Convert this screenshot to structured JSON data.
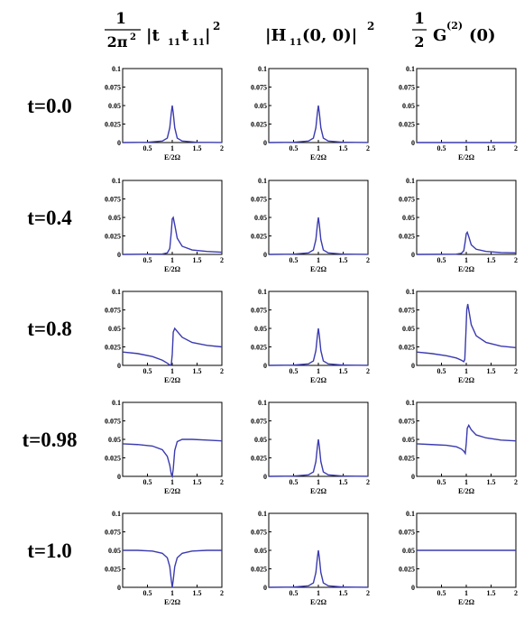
{
  "headers": [
    {
      "frac_num": "1",
      "frac_den": "2π",
      "den_exp": "2",
      "body": "|t",
      "sub1": "11",
      "mid": "t",
      "sub2": "11",
      "tail": "|",
      "exp": "2"
    },
    {
      "body": "|H",
      "sub": "11",
      "args": "(0, 0)|",
      "exp": "2"
    },
    {
      "frac_num": "1",
      "frac_den": "2",
      "body": "G",
      "sup": "(2)",
      "args": "(0)"
    }
  ],
  "chart_data": {
    "type": "line",
    "xlabel": "E/2Ω",
    "xlim": [
      0,
      2
    ],
    "ylim": [
      0,
      0.1
    ],
    "xticks": [
      "0.5",
      "1",
      "1.5",
      "2"
    ],
    "yticks": [
      "0",
      "0.025",
      "0.05",
      "0.075",
      "0.1"
    ],
    "series_color": "#3a3ab0",
    "rows": [
      {
        "label": "t=0.0",
        "panels": [
          {
            "x": [
              0,
              0.5,
              0.8,
              0.9,
              0.95,
              0.98,
              1.0,
              1.02,
              1.05,
              1.1,
              1.2,
              1.5,
              2.0
            ],
            "y": [
              0,
              0.0004,
              0.002,
              0.006,
              0.02,
              0.04,
              0.05,
              0.04,
              0.02,
              0.006,
              0.002,
              0.0004,
              0.0001
            ]
          },
          {
            "x": [
              0,
              0.5,
              0.8,
              0.9,
              0.95,
              0.98,
              1.0,
              1.02,
              1.05,
              1.1,
              1.2,
              1.5,
              2.0
            ],
            "y": [
              0,
              0.0004,
              0.002,
              0.006,
              0.02,
              0.04,
              0.05,
              0.04,
              0.02,
              0.006,
              0.002,
              0.0004,
              0.0001
            ]
          },
          {
            "x": [
              0,
              2
            ],
            "y": [
              0,
              0
            ]
          }
        ]
      },
      {
        "label": "t=0.4",
        "panels": [
          {
            "x": [
              0,
              0.8,
              0.9,
              0.95,
              0.98,
              1.0,
              1.02,
              1.05,
              1.1,
              1.2,
              1.4,
              1.7,
              2.0
            ],
            "y": [
              0,
              0.0005,
              0.002,
              0.008,
              0.03,
              0.048,
              0.05,
              0.04,
              0.022,
              0.011,
              0.006,
              0.004,
              0.003
            ]
          },
          {
            "x": [
              0,
              0.5,
              0.8,
              0.9,
              0.95,
              0.98,
              1.0,
              1.02,
              1.05,
              1.1,
              1.2,
              1.5,
              2.0
            ],
            "y": [
              0,
              0.0004,
              0.002,
              0.006,
              0.02,
              0.04,
              0.05,
              0.04,
              0.02,
              0.006,
              0.002,
              0.0004,
              0.0001
            ]
          },
          {
            "x": [
              0,
              0.8,
              0.9,
              0.95,
              0.98,
              1.0,
              1.02,
              1.05,
              1.1,
              1.2,
              1.4,
              1.7,
              2.0
            ],
            "y": [
              0,
              0.0003,
              0.0015,
              0.005,
              0.018,
              0.028,
              0.03,
              0.024,
              0.013,
              0.007,
              0.004,
              0.0025,
              0.002
            ]
          }
        ]
      },
      {
        "label": "t=0.8",
        "panels": [
          {
            "x": [
              0,
              0.3,
              0.6,
              0.8,
              0.9,
              0.95,
              0.98,
              1.0,
              1.02,
              1.05,
              1.1,
              1.2,
              1.4,
              1.7,
              2.0
            ],
            "y": [
              0.018,
              0.016,
              0.012,
              0.007,
              0.003,
              0.0005,
              0.001,
              0.015,
              0.045,
              0.05,
              0.046,
              0.038,
              0.031,
              0.027,
              0.025
            ]
          },
          {
            "x": [
              0,
              0.5,
              0.8,
              0.9,
              0.95,
              0.98,
              1.0,
              1.02,
              1.05,
              1.1,
              1.2,
              1.5,
              2.0
            ],
            "y": [
              0,
              0.0004,
              0.002,
              0.006,
              0.02,
              0.04,
              0.05,
              0.04,
              0.02,
              0.006,
              0.002,
              0.0004,
              0.0001
            ]
          },
          {
            "x": [
              0,
              0.3,
              0.6,
              0.8,
              0.9,
              0.95,
              0.97,
              0.99,
              1.01,
              1.03,
              1.05,
              1.1,
              1.2,
              1.4,
              1.7,
              2.0
            ],
            "y": [
              0.018,
              0.016,
              0.013,
              0.01,
              0.007,
              0.005,
              0.008,
              0.04,
              0.075,
              0.083,
              0.075,
              0.055,
              0.04,
              0.031,
              0.026,
              0.024
            ]
          }
        ]
      },
      {
        "label": "t=0.98",
        "panels": [
          {
            "x": [
              0,
              0.3,
              0.6,
              0.8,
              0.9,
              0.95,
              0.98,
              1.0,
              1.02,
              1.05,
              1.1,
              1.2,
              1.4,
              1.7,
              2.0
            ],
            "y": [
              0.044,
              0.043,
              0.041,
              0.036,
              0.027,
              0.015,
              0.003,
              0.0,
              0.01,
              0.035,
              0.047,
              0.05,
              0.05,
              0.049,
              0.048
            ]
          },
          {
            "x": [
              0,
              0.5,
              0.8,
              0.9,
              0.95,
              0.98,
              1.0,
              1.02,
              1.05,
              1.1,
              1.2,
              1.5,
              2.0
            ],
            "y": [
              0,
              0.0004,
              0.002,
              0.006,
              0.02,
              0.04,
              0.05,
              0.04,
              0.02,
              0.006,
              0.002,
              0.0004,
              0.0001
            ]
          },
          {
            "x": [
              0,
              0.3,
              0.6,
              0.8,
              0.9,
              0.95,
              0.98,
              1.0,
              1.02,
              1.05,
              1.1,
              1.2,
              1.4,
              1.7,
              2.0
            ],
            "y": [
              0.044,
              0.043,
              0.042,
              0.04,
              0.037,
              0.034,
              0.031,
              0.045,
              0.065,
              0.069,
              0.063,
              0.056,
              0.052,
              0.049,
              0.048
            ]
          }
        ]
      },
      {
        "label": "t=1.0",
        "panels": [
          {
            "x": [
              0,
              0.3,
              0.6,
              0.8,
              0.9,
              0.95,
              0.98,
              1.0,
              1.02,
              1.05,
              1.1,
              1.2,
              1.4,
              1.7,
              2.0
            ],
            "y": [
              0.05,
              0.05,
              0.049,
              0.046,
              0.04,
              0.028,
              0.01,
              0.0,
              0.01,
              0.028,
              0.04,
              0.046,
              0.049,
              0.05,
              0.05
            ]
          },
          {
            "x": [
              0,
              0.5,
              0.8,
              0.9,
              0.95,
              0.98,
              1.0,
              1.02,
              1.05,
              1.1,
              1.2,
              1.5,
              2.0
            ],
            "y": [
              0,
              0.0004,
              0.002,
              0.006,
              0.02,
              0.04,
              0.05,
              0.04,
              0.02,
              0.006,
              0.002,
              0.0004,
              0.0001
            ]
          },
          {
            "x": [
              0,
              2
            ],
            "y": [
              0.05,
              0.05
            ]
          }
        ]
      }
    ]
  }
}
